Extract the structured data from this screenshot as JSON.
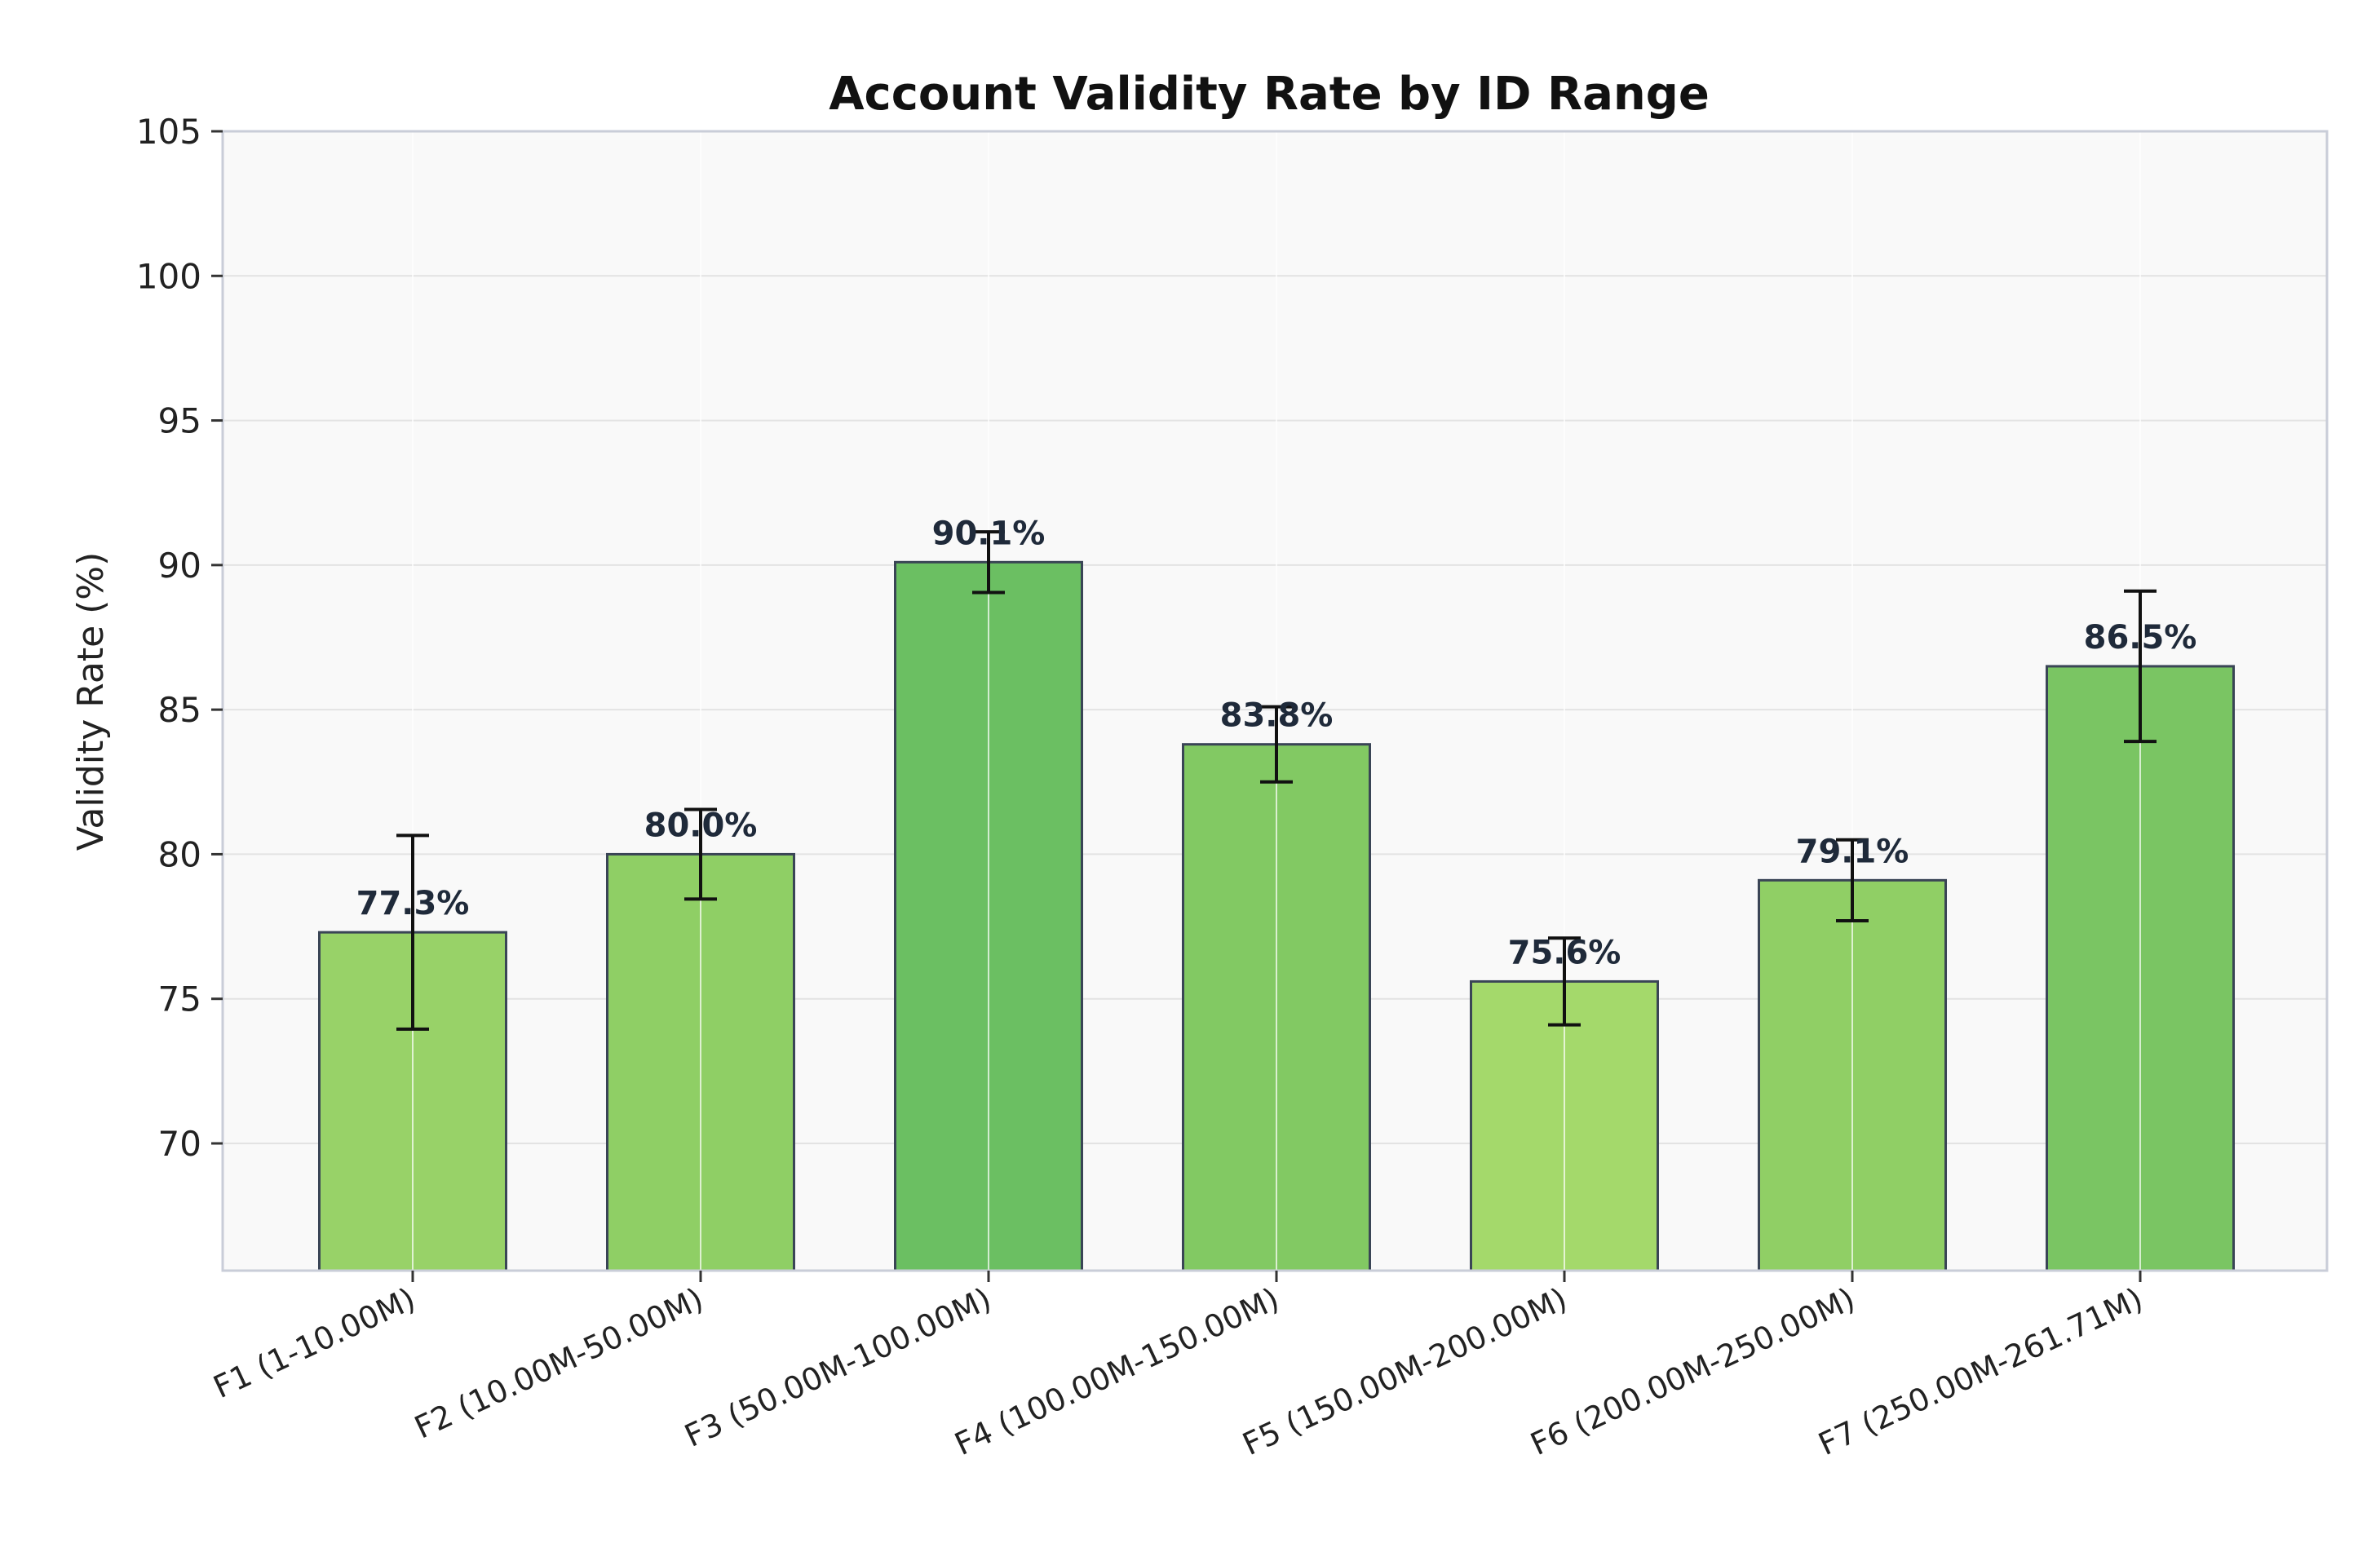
{
  "chart_data": {
    "type": "bar",
    "title": "Account Validity Rate by ID Range",
    "xlabel": "",
    "ylabel": "Validity Rate (%)",
    "ylim": [
      65.6,
      105
    ],
    "yticks": [
      70,
      75,
      80,
      85,
      90,
      95,
      100,
      105
    ],
    "grid": true,
    "categories": [
      "F1 (1-10.00M)",
      "F2 (10.00M-50.00M)",
      "F3 (50.00M-100.00M)",
      "F4 (100.00M-150.00M)",
      "F5 (150.00M-200.00M)",
      "F6 (200.00M-250.00M)",
      "F7 (250.00M-261.71M)"
    ],
    "values": [
      77.3,
      80.0,
      90.1,
      83.8,
      75.6,
      79.1,
      86.5
    ],
    "error": [
      3.35,
      1.55,
      1.05,
      1.3,
      1.5,
      1.4,
      2.6
    ],
    "data_labels": [
      "77.3%",
      "80.0%",
      "90.1%",
      "83.8%",
      "75.6%",
      "79.1%",
      "86.5%"
    ],
    "bar_colors": [
      "#98d268",
      "#8fcf65",
      "#6bbf62",
      "#82c963",
      "#a4d96b",
      "#90cf65",
      "#7ac563"
    ],
    "colors": {
      "plot_background": "#f9f9f9",
      "grid": "#e3e3e3",
      "bar_edge": "#3a4556",
      "error_bar": "#111111",
      "axis_frame": "#c9cdd8"
    }
  }
}
